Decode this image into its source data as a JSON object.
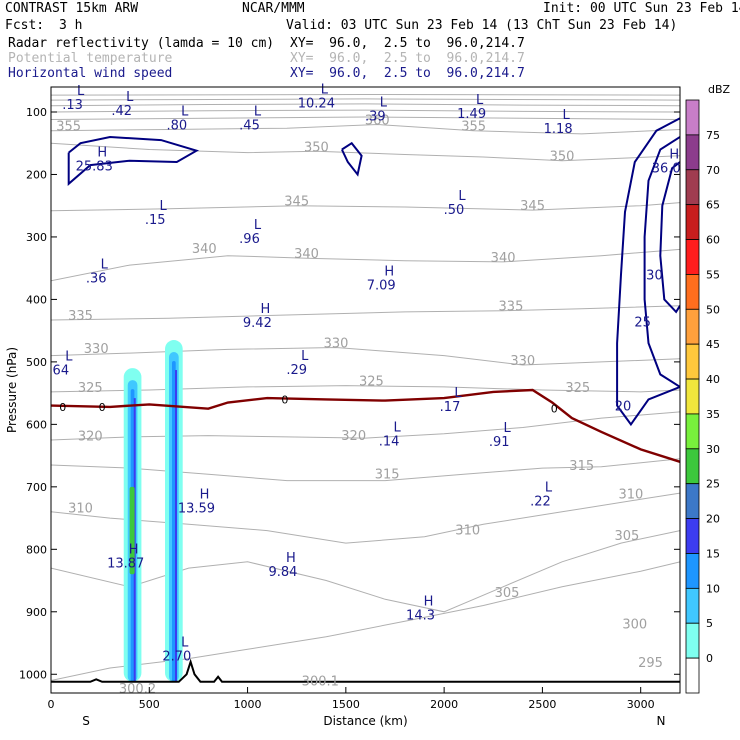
{
  "header": {
    "model": "CONTRAST 15km ARW",
    "org": "NCAR/MMM",
    "init": "Init: 00 UTC Sun 23 Feb 14",
    "fcst_label": "Fcst:",
    "fcst_value": "3 h",
    "valid": "Valid: 03 UTC Sun 23 Feb 14 (13 ChT Sun 23 Feb 14)"
  },
  "fields": [
    {
      "name": "Radar reflectivity (lamda = 10 cm)",
      "xy": "XY=  96.0,  2.5 to  96.0,214.7",
      "color": "#000000"
    },
    {
      "name": "Potential temperature",
      "xy": "XY=  96.0,  2.5 to  96.0,214.7",
      "color": "#b4b4b4"
    },
    {
      "name": "Horizontal wind speed",
      "xy": "XY=  96.0,  2.5 to  96.0,214.7",
      "color": "#1a1a8c"
    }
  ],
  "chart_data": {
    "type": "cross-section",
    "xlabel": "Distance (km)",
    "ylabel": "Pressure (hPa)",
    "xlim": [
      0,
      3200
    ],
    "ylim": [
      1030,
      60
    ],
    "x_ticks": [
      0,
      500,
      1000,
      1500,
      2000,
      2500,
      3000
    ],
    "y_ticks": [
      100,
      200,
      300,
      400,
      500,
      600,
      700,
      800,
      900,
      1000
    ],
    "x_end_labels": {
      "left": "S",
      "right": "N"
    },
    "colorbar": {
      "units": "dBZ",
      "levels": [
        0,
        5,
        10,
        15,
        20,
        25,
        30,
        35,
        40,
        45,
        50,
        55,
        60,
        65,
        70,
        75
      ],
      "colors": [
        "#ffffff",
        "#7ffff0",
        "#40c8ff",
        "#1e96ff",
        "#3c3cf0",
        "#3c78c8",
        "#3cc83c",
        "#78f03c",
        "#f0e63c",
        "#ffc83c",
        "#ffa03c",
        "#ff6e1e",
        "#ff1e1e",
        "#c81e1e",
        "#a03c50",
        "#8c3c8c",
        "#c87ec8"
      ]
    },
    "potential_temperature_labels": [
      {
        "text": "355",
        "x": 90,
        "p": 130
      },
      {
        "text": "360",
        "x": 1660,
        "p": 120
      },
      {
        "text": "355",
        "x": 2150,
        "p": 130
      },
      {
        "text": "350",
        "x": 1350,
        "p": 163
      },
      {
        "text": "350",
        "x": 2600,
        "p": 178
      },
      {
        "text": "345",
        "x": 1250,
        "p": 250
      },
      {
        "text": "345",
        "x": 2450,
        "p": 257
      },
      {
        "text": "340",
        "x": 780,
        "p": 326
      },
      {
        "text": "340",
        "x": 1300,
        "p": 334
      },
      {
        "text": "340",
        "x": 2300,
        "p": 340
      },
      {
        "text": "335",
        "x": 150,
        "p": 433
      },
      {
        "text": "335",
        "x": 2340,
        "p": 418
      },
      {
        "text": "330",
        "x": 230,
        "p": 486
      },
      {
        "text": "330",
        "x": 1450,
        "p": 477
      },
      {
        "text": "330",
        "x": 2400,
        "p": 505
      },
      {
        "text": "325",
        "x": 200,
        "p": 548
      },
      {
        "text": "325",
        "x": 1630,
        "p": 538
      },
      {
        "text": "325",
        "x": 2680,
        "p": 548
      },
      {
        "text": "320",
        "x": 200,
        "p": 626
      },
      {
        "text": "320",
        "x": 1540,
        "p": 625
      },
      {
        "text": "315",
        "x": 1710,
        "p": 687
      },
      {
        "text": "315",
        "x": 2700,
        "p": 673
      },
      {
        "text": "310",
        "x": 150,
        "p": 741
      },
      {
        "text": "310",
        "x": 2120,
        "p": 776
      },
      {
        "text": "310",
        "x": 2950,
        "p": 719
      },
      {
        "text": "305",
        "x": 2320,
        "p": 876
      },
      {
        "text": "305",
        "x": 2930,
        "p": 785
      },
      {
        "text": "300",
        "x": 2970,
        "p": 927
      },
      {
        "text": "295",
        "x": 3050,
        "p": 988
      },
      {
        "text": "300.2",
        "x": 440,
        "p": 1030
      },
      {
        "text": "300.1",
        "x": 1370,
        "p": 1018
      }
    ],
    "wind_isotach_labels": [
      {
        "text": "30",
        "x": 3070,
        "p": 368
      },
      {
        "text": "25",
        "x": 3010,
        "p": 443
      },
      {
        "text": "20",
        "x": 2910,
        "p": 578
      }
    ],
    "freezing_level_label": "0",
    "wind_extrema": [
      {
        "kind": "L",
        "value": ".13",
        "x": 110,
        "p": 95
      },
      {
        "kind": "L",
        "value": ".42",
        "x": 360,
        "p": 105
      },
      {
        "kind": "L",
        "value": ".80",
        "x": 640,
        "p": 128
      },
      {
        "kind": "L",
        "value": ".45",
        "x": 1010,
        "p": 128
      },
      {
        "kind": "L",
        "value": "10.24",
        "x": 1350,
        "p": 93
      },
      {
        "kind": "L",
        "value": ".39",
        "x": 1650,
        "p": 114
      },
      {
        "kind": "L",
        "value": "1.49",
        "x": 2140,
        "p": 110
      },
      {
        "kind": "L",
        "value": "1.18",
        "x": 2580,
        "p": 134
      },
      {
        "kind": "H",
        "value": "25.83",
        "x": 220,
        "p": 194
      },
      {
        "kind": "H",
        "value": "36.0",
        "x": 3130,
        "p": 197
      },
      {
        "kind": "L",
        "value": ".15",
        "x": 530,
        "p": 279
      },
      {
        "kind": "L",
        "value": ".96",
        "x": 1010,
        "p": 310
      },
      {
        "kind": "L",
        "value": ".50",
        "x": 2050,
        "p": 263
      },
      {
        "kind": "L",
        "value": ".36",
        "x": 230,
        "p": 373
      },
      {
        "kind": "H",
        "value": "7.09",
        "x": 1680,
        "p": 384
      },
      {
        "kind": "H",
        "value": "9.42",
        "x": 1050,
        "p": 444
      },
      {
        "kind": "L",
        "value": "64",
        "x": 50,
        "p": 520
      },
      {
        "kind": "L",
        "value": ".29",
        "x": 1250,
        "p": 519
      },
      {
        "kind": "L",
        "value": ".17",
        "x": 2030,
        "p": 579
      },
      {
        "kind": "L",
        "value": ".14",
        "x": 1720,
        "p": 634
      },
      {
        "kind": "L",
        "value": ".91",
        "x": 2280,
        "p": 635
      },
      {
        "kind": "L",
        "value": ".22",
        "x": 2490,
        "p": 730
      },
      {
        "kind": "H",
        "value": "13.59",
        "x": 740,
        "p": 741
      },
      {
        "kind": "H",
        "value": "13.87",
        "x": 380,
        "p": 829
      },
      {
        "kind": "H",
        "value": "9.84",
        "x": 1180,
        "p": 843
      },
      {
        "kind": "H",
        "value": "14.3",
        "x": 1880,
        "p": 912
      },
      {
        "kind": "L",
        "value": "2.70",
        "x": 640,
        "p": 978
      }
    ]
  }
}
